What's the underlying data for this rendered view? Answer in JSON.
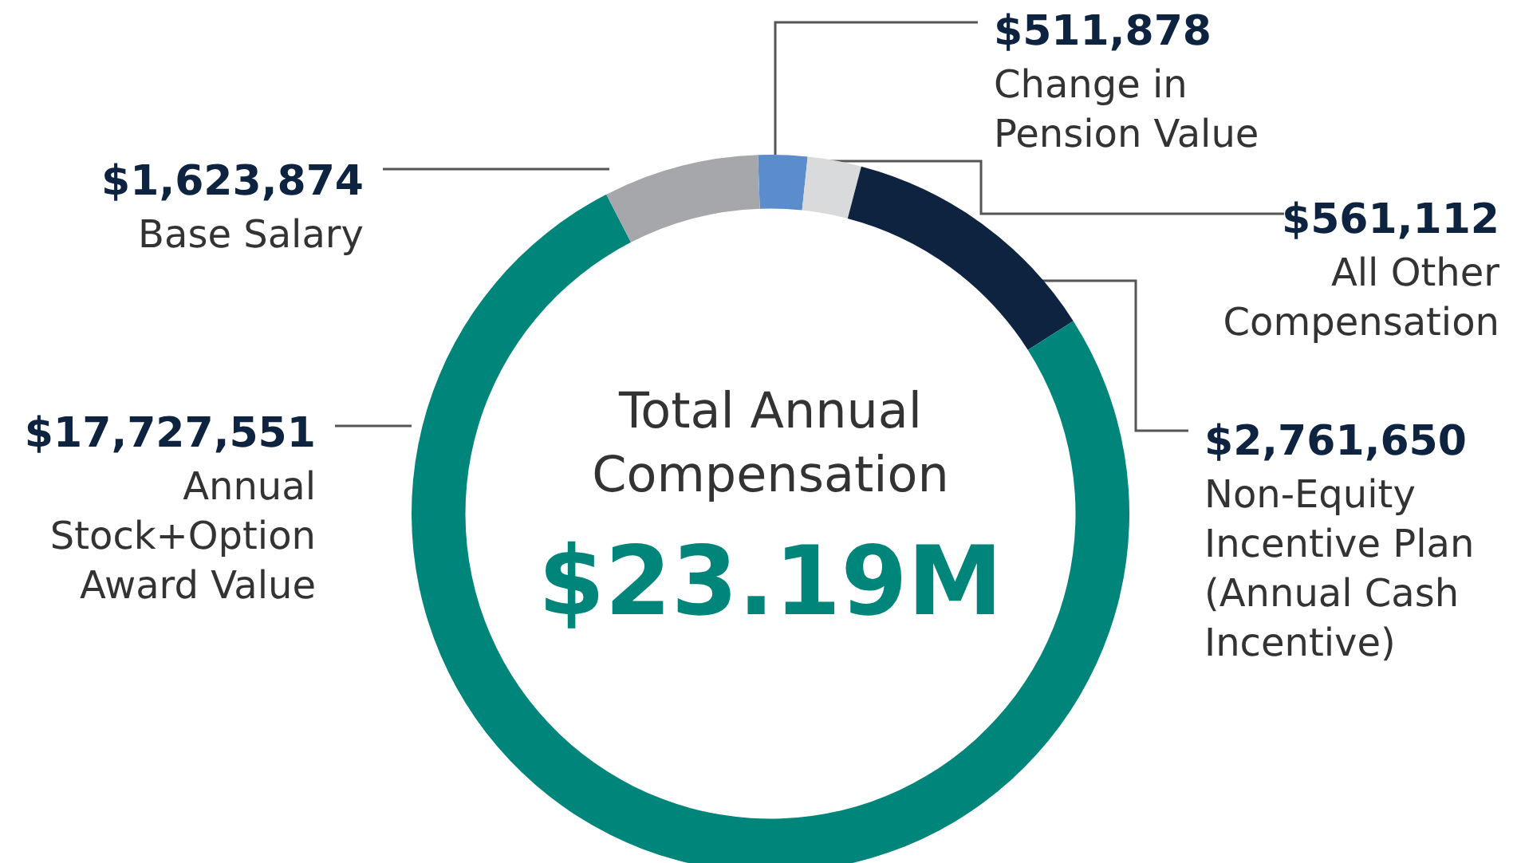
{
  "chart_data": {
    "type": "donut",
    "title": "Total Annual Compensation",
    "subtitle": "$23.19M",
    "categories": [
      "Change in Pension Value",
      "All Other Compensation",
      "Non-Equity Incentive Plan (Annual Cash Incentive)",
      "Annual Stock+Option Award Value",
      "Base Salary"
    ],
    "values": [
      511878,
      561112,
      2761650,
      17727551,
      1623874
    ],
    "colors": [
      "#5b8ccc",
      "#d9dadc",
      "#0d2340",
      "#00857a",
      "#a5a7aa"
    ],
    "value_labels": [
      "$511,878",
      "$561,112",
      "$2,761,650",
      "$17,727,551",
      "$1,623,874"
    ],
    "legend": false
  }
}
